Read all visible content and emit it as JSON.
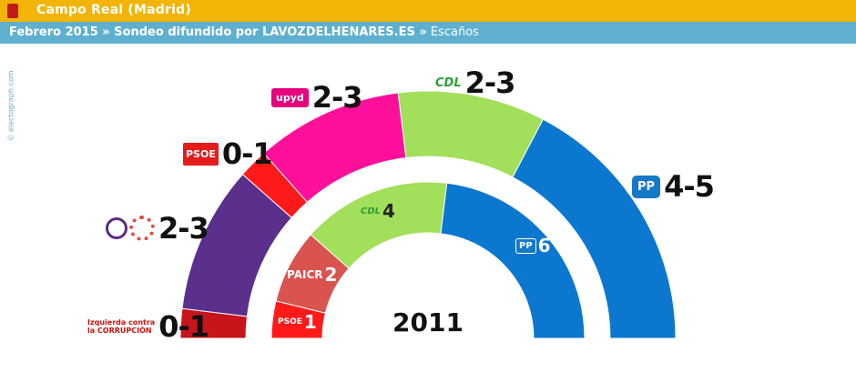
{
  "header": {
    "title": "Campo Real (Madrid)",
    "subtitle_prefix": "Febrero 2015 » Sondeo difundido por LAVOZDELHENARES.ES »",
    "subtitle_suffix": "Escaños"
  },
  "watermark": "© electograph.com",
  "logos": {
    "izq_line1": "Izquierda contra",
    "izq_line2": "la CORRUPCIÓN",
    "psoe": "PSOE",
    "upyd": "upyd",
    "cdl": "CDL",
    "pp": "PP",
    "podemos": "PODEMOS",
    "paicr": "PAICR"
  },
  "chart_data": [
    {
      "type": "pie",
      "title": "",
      "subtitle": "Sondeo Febrero 2015",
      "series": [
        {
          "party": "Izquierda contra la Corrupción",
          "label": "0-1",
          "value": 0.5,
          "color": "#c8141b"
        },
        {
          "party": "Podemos / Ganemos",
          "label": "2-3",
          "value": 2.5,
          "color": "#5b2f8c"
        },
        {
          "party": "PSOE",
          "label": "0-1",
          "value": 0.5,
          "color": "#ff1a1a"
        },
        {
          "party": "UPyD",
          "label": "2-3",
          "value": 2.5,
          "color": "#ff109a"
        },
        {
          "party": "CDL",
          "label": "2-3",
          "value": 2.5,
          "color": "#a2df5a"
        },
        {
          "party": "PP",
          "label": "4-5",
          "value": 4.5,
          "color": "#0b77cf"
        }
      ]
    },
    {
      "type": "pie",
      "title": "2011",
      "series": [
        {
          "party": "PSOE",
          "label": "1",
          "value": 1,
          "color": "#ff1a1a"
        },
        {
          "party": "PAICR",
          "label": "2",
          "value": 2,
          "color": "#d9534f"
        },
        {
          "party": "CDL",
          "label": "4",
          "value": 4,
          "color": "#a2df5a"
        },
        {
          "party": "PP",
          "label": "6",
          "value": 6,
          "color": "#0b77cf"
        }
      ]
    }
  ]
}
